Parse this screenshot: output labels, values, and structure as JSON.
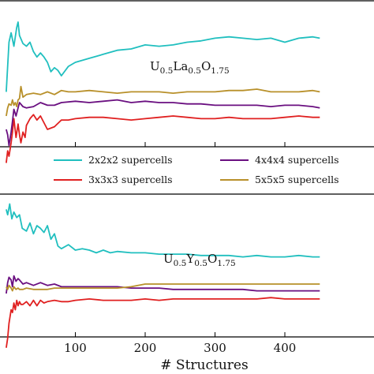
{
  "chart_data": [
    {
      "type": "line",
      "panel": "top",
      "composition": [
        {
          "base": "U",
          "sub": "0.5"
        },
        {
          "base": "La",
          "sub": "0.5"
        },
        {
          "base": "O",
          "sub": "1.75"
        }
      ],
      "xlim": [
        0,
        450
      ],
      "series": [
        {
          "name": "2x2x2 supercells",
          "color": "#20bfbf",
          "x": [
            1,
            5,
            8,
            12,
            16,
            18,
            20,
            25,
            30,
            35,
            40,
            45,
            50,
            55,
            60,
            65,
            70,
            75,
            80,
            90,
            100,
            120,
            140,
            160,
            180,
            200,
            220,
            240,
            260,
            280,
            300,
            320,
            340,
            360,
            380,
            400,
            420,
            440,
            450
          ],
          "y": [
            0.18,
            0.55,
            0.62,
            0.52,
            0.66,
            0.7,
            0.6,
            0.54,
            0.52,
            0.55,
            0.48,
            0.44,
            0.47,
            0.44,
            0.4,
            0.33,
            0.36,
            0.34,
            0.3,
            0.37,
            0.4,
            0.43,
            0.46,
            0.49,
            0.5,
            0.53,
            0.52,
            0.53,
            0.55,
            0.56,
            0.58,
            0.59,
            0.58,
            0.57,
            0.58,
            0.55,
            0.58,
            0.59,
            0.58
          ]
        },
        {
          "name": "3x3x3 supercells",
          "color": "#e02020",
          "x": [
            1,
            3,
            5,
            8,
            10,
            12,
            15,
            18,
            20,
            22,
            25,
            28,
            30,
            35,
            40,
            45,
            50,
            55,
            60,
            70,
            80,
            90,
            100,
            120,
            140,
            160,
            180,
            200,
            220,
            240,
            260,
            280,
            300,
            320,
            340,
            360,
            380,
            400,
            420,
            440,
            450
          ],
          "y": [
            -0.35,
            -0.26,
            -0.3,
            -0.2,
            -0.12,
            -0.02,
            -0.16,
            -0.06,
            -0.14,
            -0.2,
            -0.12,
            -0.16,
            -0.07,
            -0.02,
            0.01,
            -0.03,
            0.0,
            -0.05,
            -0.1,
            -0.08,
            -0.03,
            -0.03,
            -0.02,
            -0.01,
            -0.01,
            -0.02,
            -0.03,
            -0.02,
            -0.01,
            0.0,
            -0.01,
            -0.02,
            -0.02,
            -0.01,
            -0.02,
            -0.02,
            -0.02,
            -0.01,
            0.0,
            -0.01,
            -0.01
          ]
        },
        {
          "name": "4x4x4 supercells",
          "color": "#6a0f80",
          "x": [
            1,
            3,
            5,
            8,
            10,
            12,
            15,
            18,
            20,
            25,
            30,
            40,
            50,
            60,
            70,
            80,
            100,
            120,
            140,
            160,
            180,
            200,
            220,
            240,
            260,
            280,
            300,
            320,
            340,
            360,
            380,
            400,
            420,
            440,
            450
          ],
          "y": [
            -0.1,
            -0.14,
            -0.22,
            -0.12,
            -0.04,
            0.05,
            0.0,
            0.06,
            0.1,
            0.07,
            0.06,
            0.07,
            0.1,
            0.08,
            0.08,
            0.1,
            0.11,
            0.1,
            0.11,
            0.12,
            0.1,
            0.11,
            0.1,
            0.1,
            0.09,
            0.09,
            0.08,
            0.08,
            0.08,
            0.08,
            0.07,
            0.08,
            0.08,
            0.07,
            0.06
          ]
        },
        {
          "name": "5x5x5 supercells",
          "color": "#b8902a",
          "x": [
            1,
            3,
            5,
            8,
            10,
            12,
            14,
            16,
            18,
            20,
            22,
            25,
            30,
            40,
            50,
            60,
            70,
            80,
            90,
            100,
            120,
            140,
            160,
            180,
            200,
            220,
            240,
            260,
            280,
            300,
            320,
            340,
            360,
            380,
            400,
            420,
            440,
            450
          ],
          "y": [
            0.0,
            0.06,
            0.09,
            0.08,
            0.12,
            0.08,
            0.1,
            0.07,
            0.12,
            0.13,
            0.22,
            0.14,
            0.16,
            0.17,
            0.16,
            0.18,
            0.16,
            0.19,
            0.18,
            0.18,
            0.19,
            0.18,
            0.17,
            0.18,
            0.18,
            0.18,
            0.17,
            0.18,
            0.18,
            0.18,
            0.19,
            0.19,
            0.2,
            0.18,
            0.18,
            0.18,
            0.19,
            0.18
          ]
        }
      ]
    },
    {
      "type": "line",
      "panel": "bottom",
      "composition": [
        {
          "base": "U",
          "sub": "0.5"
        },
        {
          "base": "Y",
          "sub": "0.5"
        },
        {
          "base": "O",
          "sub": "1.75"
        }
      ],
      "xlim": [
        0,
        450
      ],
      "xlabel": "# Structures",
      "xticks": [
        100,
        200,
        300,
        400
      ],
      "series": [
        {
          "name": "2x2x2 supercells",
          "color": "#20bfbf",
          "x": [
            1,
            3,
            6,
            9,
            12,
            16,
            20,
            24,
            30,
            35,
            40,
            45,
            50,
            55,
            60,
            65,
            70,
            75,
            80,
            90,
            100,
            110,
            120,
            130,
            140,
            150,
            160,
            180,
            200,
            220,
            240,
            260,
            280,
            300,
            320,
            340,
            360,
            380,
            400,
            420,
            440,
            450
          ],
          "y": [
            0.62,
            0.58,
            0.66,
            0.55,
            0.6,
            0.56,
            0.58,
            0.48,
            0.46,
            0.52,
            0.44,
            0.5,
            0.48,
            0.45,
            0.5,
            0.4,
            0.44,
            0.35,
            0.33,
            0.36,
            0.32,
            0.33,
            0.32,
            0.3,
            0.32,
            0.3,
            0.31,
            0.3,
            0.3,
            0.29,
            0.29,
            0.29,
            0.28,
            0.28,
            0.28,
            0.27,
            0.28,
            0.27,
            0.27,
            0.28,
            0.27,
            0.27
          ]
        },
        {
          "name": "3x3x3 supercells",
          "color": "#e02020",
          "x": [
            1,
            3,
            5,
            8,
            10,
            12,
            14,
            16,
            18,
            20,
            22,
            25,
            30,
            35,
            40,
            45,
            50,
            55,
            60,
            70,
            80,
            90,
            100,
            120,
            140,
            160,
            180,
            200,
            220,
            240,
            260,
            280,
            300,
            320,
            340,
            360,
            380,
            400,
            420,
            440,
            450
          ],
          "y": [
            -0.4,
            -0.33,
            -0.22,
            -0.12,
            -0.14,
            -0.07,
            -0.12,
            -0.05,
            -0.09,
            -0.06,
            -0.08,
            -0.08,
            -0.06,
            -0.09,
            -0.05,
            -0.09,
            -0.05,
            -0.07,
            -0.06,
            -0.05,
            -0.06,
            -0.06,
            -0.05,
            -0.04,
            -0.05,
            -0.05,
            -0.05,
            -0.04,
            -0.05,
            -0.04,
            -0.04,
            -0.04,
            -0.04,
            -0.04,
            -0.04,
            -0.04,
            -0.03,
            -0.04,
            -0.04,
            -0.04,
            -0.04
          ]
        },
        {
          "name": "4x4x4 supercells",
          "color": "#6a0f80",
          "x": [
            1,
            3,
            5,
            8,
            10,
            12,
            15,
            18,
            20,
            25,
            30,
            40,
            50,
            60,
            70,
            80,
            100,
            120,
            140,
            160,
            180,
            200,
            220,
            240,
            260,
            280,
            300,
            320,
            340,
            360,
            380,
            400,
            420,
            440,
            450
          ],
          "y": [
            0.0,
            0.08,
            0.12,
            0.1,
            0.05,
            0.13,
            0.09,
            0.11,
            0.1,
            0.07,
            0.08,
            0.06,
            0.08,
            0.06,
            0.07,
            0.05,
            0.05,
            0.05,
            0.05,
            0.05,
            0.04,
            0.04,
            0.04,
            0.03,
            0.03,
            0.03,
            0.03,
            0.03,
            0.03,
            0.02,
            0.02,
            0.02,
            0.02,
            0.02,
            0.02
          ]
        },
        {
          "name": "5x5x5 supercells",
          "color": "#b8902a",
          "x": [
            1,
            3,
            5,
            8,
            10,
            12,
            15,
            18,
            20,
            25,
            30,
            40,
            50,
            60,
            70,
            80,
            100,
            120,
            140,
            160,
            180,
            200,
            220,
            240,
            260,
            280,
            300,
            320,
            340,
            360,
            380,
            400,
            420,
            440,
            450
          ],
          "y": [
            0.05,
            0.03,
            0.06,
            0.04,
            0.02,
            0.05,
            0.03,
            0.04,
            0.03,
            0.03,
            0.04,
            0.03,
            0.03,
            0.03,
            0.04,
            0.04,
            0.04,
            0.04,
            0.04,
            0.04,
            0.05,
            0.07,
            0.07,
            0.07,
            0.07,
            0.07,
            0.07,
            0.07,
            0.07,
            0.07,
            0.07,
            0.07,
            0.07,
            0.07,
            0.07
          ]
        }
      ]
    }
  ],
  "legend": {
    "placement": "middle",
    "entries": [
      {
        "label": "2x2x2 supercells",
        "color": "#20bfbf"
      },
      {
        "label": "4x4x4 supercells",
        "color": "#6a0f80"
      },
      {
        "label": "3x3x3 supercells",
        "color": "#e02020"
      },
      {
        "label": "5x5x5 supercells",
        "color": "#b8902a"
      }
    ]
  }
}
